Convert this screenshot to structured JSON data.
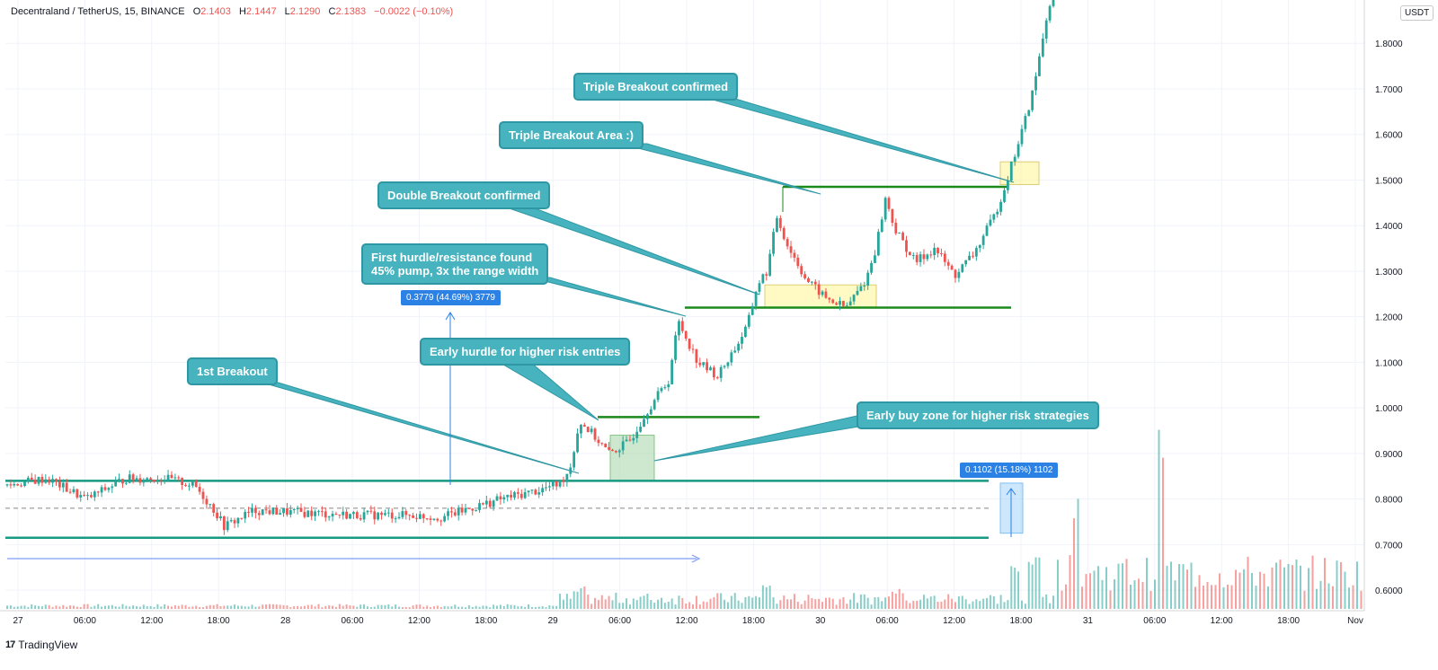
{
  "header": {
    "symbol": "Decentraland / TetherUS, 15, BINANCE",
    "o_label": "O",
    "o": "2.1403",
    "h_label": "H",
    "h": "2.1447",
    "l_label": "L",
    "l": "2.1290",
    "c_label": "C",
    "c": "2.1383",
    "change": "−0.0022 (−0.10%)"
  },
  "price_unit": "USDT",
  "brand": {
    "logo": "17",
    "name": "TradingView"
  },
  "colors": {
    "up": "#26a69a",
    "down": "#ef5350",
    "level": "#2e8b57",
    "note": "#46b3bf",
    "measure": "#2b82e4"
  },
  "annotations": [
    {
      "id": "first-breakout",
      "text": "1st Breakout"
    },
    {
      "id": "early-hurdle",
      "text": "Early hurdle for higher risk entries"
    },
    {
      "id": "first-hurdle",
      "text": "First hurdle/resistance found\n45% pump, 3x the range width"
    },
    {
      "id": "double-breakout",
      "text": "Double Breakout confirmed"
    },
    {
      "id": "triple-area",
      "text": "Triple Breakout Area :)"
    },
    {
      "id": "triple-confirmed",
      "text": "Triple Breakout confirmed"
    },
    {
      "id": "early-buy",
      "text": "Early buy zone for higher risk strategies"
    }
  ],
  "measures": [
    {
      "id": "measure-large",
      "text": "0.3779 (44.69%) 3779"
    },
    {
      "id": "measure-small",
      "text": "0.1102 (15.18%) 1102"
    }
  ],
  "chart_data": {
    "type": "candlestick",
    "y_ticks": [
      "0.6000",
      "0.7000",
      "0.8000",
      "0.9000",
      "1.0000",
      "1.1000",
      "1.2000",
      "1.3000",
      "1.4000",
      "1.5000",
      "1.6000",
      "1.7000",
      "1.8000"
    ],
    "x_ticks": [
      "27",
      "06:00",
      "12:00",
      "18:00",
      "28",
      "06:00",
      "12:00",
      "18:00",
      "29",
      "06:00",
      "12:00",
      "18:00",
      "30",
      "06:00",
      "12:00",
      "18:00",
      "31",
      "06:00",
      "12:00",
      "18:00",
      "Nov"
    ],
    "ylim": [
      0.555,
      1.895
    ],
    "levels": [
      {
        "name": "range-top",
        "value": 0.84
      },
      {
        "name": "range-mid",
        "value": 0.78,
        "style": "dashed"
      },
      {
        "name": "range-bottom",
        "value": 0.715
      },
      {
        "name": "early-hurdle",
        "value": 0.98
      },
      {
        "name": "first-hurdle",
        "value": 1.22
      },
      {
        "name": "second-resistance",
        "value": 1.485
      }
    ],
    "price_path": [
      [
        0,
        0.83
      ],
      [
        4,
        0.845
      ],
      [
        8,
        0.8
      ],
      [
        12,
        0.845
      ],
      [
        16,
        0.845
      ],
      [
        19,
        0.83
      ],
      [
        21,
        0.775
      ],
      [
        22,
        0.74
      ],
      [
        25,
        0.775
      ],
      [
        30,
        0.77
      ],
      [
        35,
        0.765
      ],
      [
        40,
        0.765
      ],
      [
        44,
        0.76
      ],
      [
        47,
        0.78
      ],
      [
        50,
        0.8
      ],
      [
        54,
        0.82
      ],
      [
        56,
        0.835
      ],
      [
        57,
        0.865
      ],
      [
        58,
        0.97
      ],
      [
        59,
        0.95
      ],
      [
        61,
        0.9
      ],
      [
        63,
        0.925
      ],
      [
        65,
        1.0
      ],
      [
        67,
        1.06
      ],
      [
        68,
        1.19
      ],
      [
        70,
        1.1
      ],
      [
        72,
        1.07
      ],
      [
        74,
        1.14
      ],
      [
        75,
        1.18
      ],
      [
        76,
        1.27
      ],
      [
        77,
        1.3
      ],
      [
        78,
        1.42
      ],
      [
        79,
        1.36
      ],
      [
        81,
        1.28
      ],
      [
        83,
        1.24
      ],
      [
        85,
        1.22
      ],
      [
        87,
        1.28
      ],
      [
        88,
        1.35
      ],
      [
        89,
        1.46
      ],
      [
        90,
        1.39
      ],
      [
        92,
        1.32
      ],
      [
        94,
        1.35
      ],
      [
        96,
        1.29
      ],
      [
        98,
        1.34
      ],
      [
        99,
        1.38
      ],
      [
        100,
        1.42
      ],
      [
        101,
        1.48
      ],
      [
        102,
        1.55
      ],
      [
        103,
        1.62
      ],
      [
        104,
        1.7
      ],
      [
        105,
        1.82
      ],
      [
        106,
        1.93
      ]
    ],
    "volume_spikes": [
      {
        "day_offset": 58,
        "peak": 0.055
      },
      {
        "day_offset": 77,
        "peak": 0.07
      },
      {
        "day_offset": 90,
        "peak": 0.06
      },
      {
        "day_offset": 102,
        "peak": 0.11
      },
      {
        "day_offset": 104,
        "peak": 0.18
      }
    ]
  }
}
